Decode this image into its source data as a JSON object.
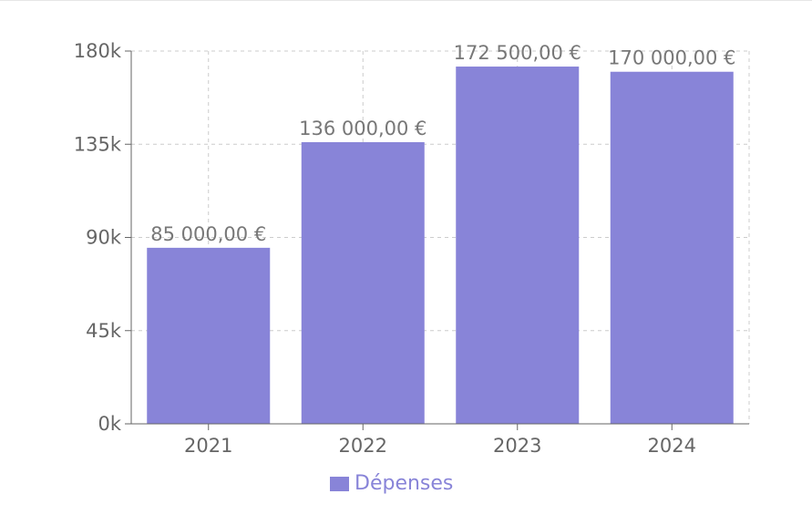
{
  "chart_data": {
    "type": "bar",
    "categories": [
      "2021",
      "2022",
      "2023",
      "2024"
    ],
    "series": [
      {
        "name": "Dépenses",
        "values": [
          85000,
          136000,
          172500,
          170000
        ],
        "data_labels": [
          "85 000,00 €",
          "136 000,00 €",
          "172 500,00 €",
          "170 000,00 €"
        ]
      }
    ],
    "ylim": [
      0,
      180000
    ],
    "yticks": [
      0,
      45000,
      90000,
      135000,
      180000
    ],
    "ytick_labels": [
      "0k",
      "45k",
      "90k",
      "135k",
      "180k"
    ],
    "grid": true,
    "legend": "bottom-center",
    "colors": {
      "bar": "#8884d8",
      "axis": "#666666",
      "grid": "#cccccc",
      "label": "#777777"
    }
  }
}
